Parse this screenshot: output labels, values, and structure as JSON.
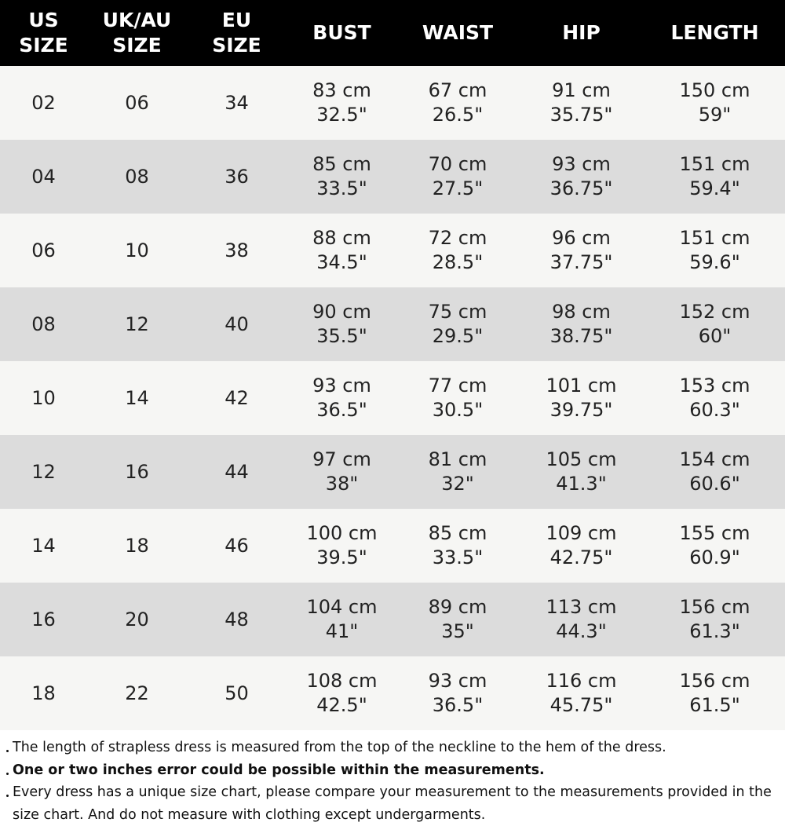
{
  "table": {
    "columns": [
      [
        "US",
        "SIZE"
      ],
      [
        "UK/AU",
        "SIZE"
      ],
      [
        "EU",
        "SIZE"
      ],
      [
        "BUST"
      ],
      [
        "WAIST"
      ],
      [
        "HIP"
      ],
      [
        "LENGTH"
      ]
    ],
    "rows": [
      [
        "02",
        "06",
        "34",
        [
          "83 cm",
          "32.5\""
        ],
        [
          "67 cm",
          "26.5\""
        ],
        [
          "91 cm",
          "35.75\""
        ],
        [
          "150 cm",
          "59\""
        ]
      ],
      [
        "04",
        "08",
        "36",
        [
          "85 cm",
          "33.5\""
        ],
        [
          "70 cm",
          "27.5\""
        ],
        [
          "93 cm",
          "36.75\""
        ],
        [
          "151 cm",
          "59.4\""
        ]
      ],
      [
        "06",
        "10",
        "38",
        [
          "88 cm",
          "34.5\""
        ],
        [
          "72 cm",
          "28.5\""
        ],
        [
          "96 cm",
          "37.75\""
        ],
        [
          "151 cm",
          "59.6\""
        ]
      ],
      [
        "08",
        "12",
        "40",
        [
          "90 cm",
          "35.5\""
        ],
        [
          "75 cm",
          "29.5\""
        ],
        [
          "98 cm",
          "38.75\""
        ],
        [
          "152 cm",
          "60\""
        ]
      ],
      [
        "10",
        "14",
        "42",
        [
          "93 cm",
          "36.5\""
        ],
        [
          "77 cm",
          "30.5\""
        ],
        [
          "101 cm",
          "39.75\""
        ],
        [
          "153 cm",
          "60.3\""
        ]
      ],
      [
        "12",
        "16",
        "44",
        [
          "97 cm",
          "38\""
        ],
        [
          "81 cm",
          "32\""
        ],
        [
          "105 cm",
          "41.3\""
        ],
        [
          "154 cm",
          "60.6\""
        ]
      ],
      [
        "14",
        "18",
        "46",
        [
          "100 cm",
          "39.5\""
        ],
        [
          "85 cm",
          "33.5\""
        ],
        [
          "109 cm",
          "42.75\""
        ],
        [
          "155 cm",
          "60.9\""
        ]
      ],
      [
        "16",
        "20",
        "48",
        [
          "104 cm",
          "41\""
        ],
        [
          "89 cm",
          "35\""
        ],
        [
          "113 cm",
          "44.3\""
        ],
        [
          "156 cm",
          "61.3\""
        ]
      ],
      [
        "18",
        "22",
        "50",
        [
          "108 cm",
          "42.5\""
        ],
        [
          "93 cm",
          "36.5\""
        ],
        [
          "116 cm",
          "45.75\""
        ],
        [
          "156 cm",
          "61.5\""
        ]
      ]
    ]
  },
  "notes": [
    "The length of strapless dress is measured from the top of the neckline to the hem of the dress.",
    "One or two inches error could be possible within the measurements.",
    "Every dress has a unique size chart, please compare your measurement to the measurements provided in the size chart. And do not measure with clothing except undergarments."
  ]
}
